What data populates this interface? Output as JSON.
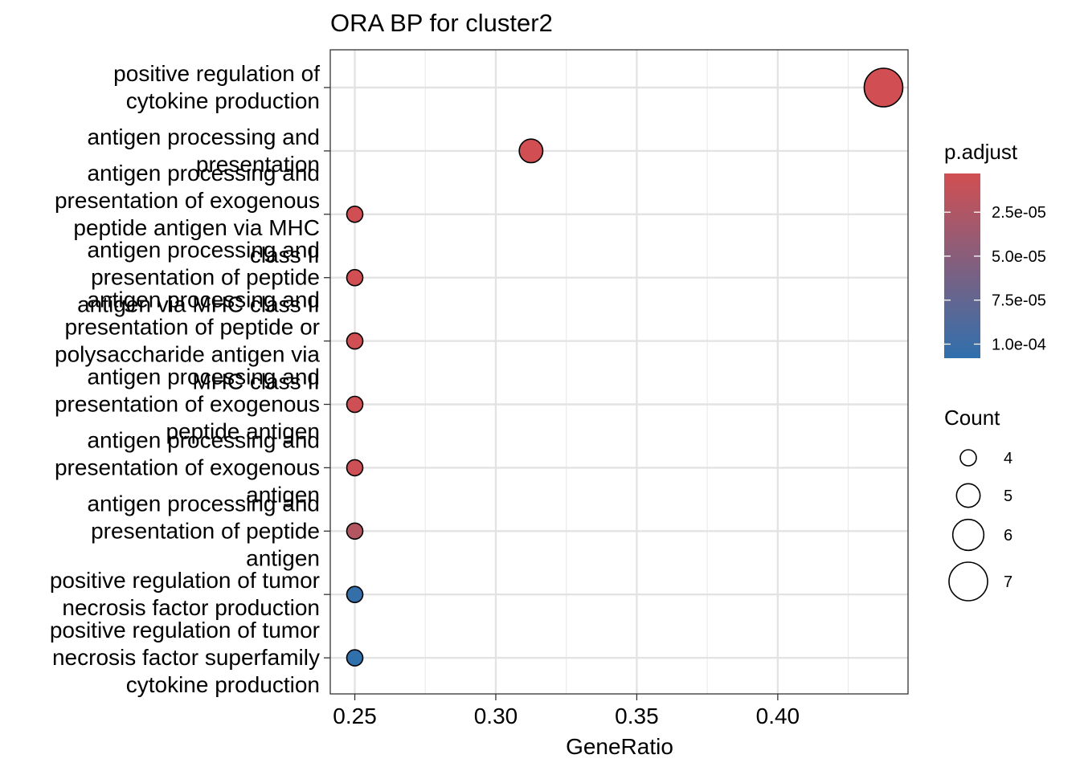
{
  "chart_data": {
    "type": "scatter",
    "title": "ORA BP for cluster2",
    "xlabel": "GeneRatio",
    "ylabel": "",
    "xlim": [
      0.2413,
      0.4462
    ],
    "x_ticks": [
      0.25,
      0.3,
      0.35,
      0.4
    ],
    "x_tick_labels": [
      "0.25",
      "0.30",
      "0.35",
      "0.40"
    ],
    "grid": true,
    "legend_position": "right",
    "categories": [
      "positive regulation of cytokine production",
      "antigen processing and presentation",
      "antigen processing and presentation of exogenous peptide antigen via MHC class II",
      "antigen processing and presentation of peptide antigen via MHC class II",
      "antigen processing and presentation of peptide or polysaccharide antigen via MHC class II",
      "antigen processing and presentation of exogenous peptide antigen",
      "antigen processing and presentation of exogenous antigen",
      "antigen processing and presentation of peptide antigen",
      "positive regulation of tumor necrosis factor production",
      "positive regulation of tumor necrosis factor superfamily cytokine production"
    ],
    "category_label_lines": [
      [
        "positive regulation of",
        "cytokine production"
      ],
      [
        "antigen processing and",
        "presentation"
      ],
      [
        "antigen processing and",
        "presentation of exogenous",
        "peptide antigen via MHC",
        "class II"
      ],
      [
        "antigen processing and",
        "presentation of peptide",
        "antigen via MHC class II"
      ],
      [
        "antigen processing and",
        "presentation of peptide or",
        "polysaccharide antigen via",
        "MHC class II"
      ],
      [
        "antigen processing and",
        "presentation of exogenous",
        "peptide antigen"
      ],
      [
        "antigen processing and",
        "presentation of exogenous",
        "antigen"
      ],
      [
        "antigen processing and",
        "presentation of peptide",
        "antigen"
      ],
      [
        "positive regulation of tumor",
        "necrosis factor production"
      ],
      [
        "positive regulation of tumor",
        "necrosis factor superfamily",
        "cytokine production"
      ]
    ],
    "points": [
      {
        "term": "positive regulation of cytokine production",
        "gene_ratio": 0.4375,
        "count": 7,
        "p_adjust": 3e-06
      },
      {
        "term": "antigen processing and presentation",
        "gene_ratio": 0.3125,
        "count": 5,
        "p_adjust": 3e-06
      },
      {
        "term": "antigen processing and presentation of exogenous peptide antigen via MHC class II",
        "gene_ratio": 0.25,
        "count": 4,
        "p_adjust": 3e-06
      },
      {
        "term": "antigen processing and presentation of peptide antigen via MHC class II",
        "gene_ratio": 0.25,
        "count": 4,
        "p_adjust": 3e-06
      },
      {
        "term": "antigen processing and presentation of peptide or polysaccharide antigen via MHC class II",
        "gene_ratio": 0.25,
        "count": 4,
        "p_adjust": 3e-06
      },
      {
        "term": "antigen processing and presentation of exogenous peptide antigen",
        "gene_ratio": 0.25,
        "count": 4,
        "p_adjust": 5e-06
      },
      {
        "term": "antigen processing and presentation of exogenous antigen",
        "gene_ratio": 0.25,
        "count": 4,
        "p_adjust": 6e-06
      },
      {
        "term": "antigen processing and presentation of peptide antigen",
        "gene_ratio": 0.25,
        "count": 4,
        "p_adjust": 2.2e-05
      },
      {
        "term": "positive regulation of tumor necrosis factor production",
        "gene_ratio": 0.25,
        "count": 4,
        "p_adjust": 0.000105
      },
      {
        "term": "positive regulation of tumor necrosis factor superfamily cytokine production",
        "gene_ratio": 0.25,
        "count": 4,
        "p_adjust": 0.000108
      }
    ],
    "color_legend": {
      "title": "p.adjust",
      "range": [
        3e-06,
        0.000108
      ],
      "colors": {
        "low_p": "#d14f52",
        "high_p": "#3070ad"
      },
      "breaks": [
        2.5e-05,
        5e-05,
        7.5e-05,
        0.0001
      ],
      "labels": [
        "2.5e-05",
        "5.0e-05",
        "7.5e-05",
        "1.0e-04"
      ]
    },
    "size_legend": {
      "title": "Count",
      "values": [
        4,
        5,
        6,
        7
      ],
      "labels": [
        "4",
        "5",
        "6",
        "7"
      ]
    }
  }
}
